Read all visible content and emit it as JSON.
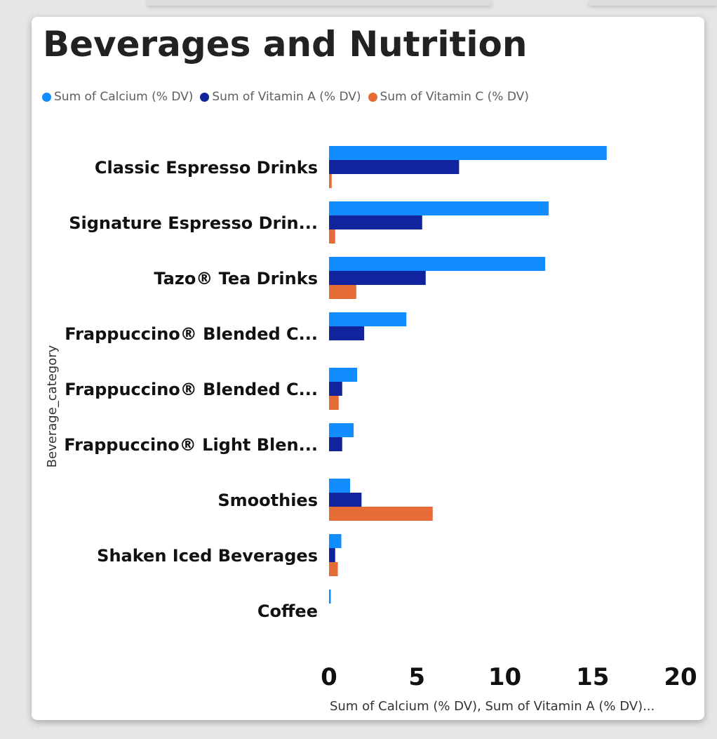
{
  "chart_data": {
    "type": "bar",
    "orientation": "horizontal",
    "title": "Beverages and Nutrition",
    "ylabel": "Beverage_category",
    "xlabel": "Sum of Calcium (% DV), Sum of Vitamin A (% DV)...",
    "xlim": [
      0,
      20
    ],
    "xticks": [
      "0",
      "5",
      "10",
      "15",
      "20"
    ],
    "categories": [
      "Classic Espresso Drinks",
      "Signature Espresso Drin...",
      "Tazo® Tea Drinks",
      "Frappuccino® Blended C...",
      "Frappuccino® Blended C...",
      "Frappuccino® Light Blen...",
      "Smoothies",
      "Shaken Iced Beverages",
      "Coffee"
    ],
    "series": [
      {
        "name": "Sum of Calcium (% DV)",
        "color": "#118dff",
        "values": [
          15.8,
          12.5,
          12.3,
          4.4,
          1.6,
          1.4,
          1.2,
          0.7,
          0.1
        ]
      },
      {
        "name": "Sum of Vitamin A (% DV)",
        "color": "#12239e",
        "values": [
          7.4,
          5.3,
          5.5,
          2.0,
          0.75,
          0.75,
          1.85,
          0.35,
          0
        ]
      },
      {
        "name": "Sum of Vitamin C (% DV)",
        "color": "#e66c37",
        "values": [
          0.15,
          0.35,
          1.55,
          0,
          0.55,
          0,
          5.9,
          0.5,
          0
        ]
      }
    ],
    "legend_position": "top-left",
    "grid": false
  }
}
